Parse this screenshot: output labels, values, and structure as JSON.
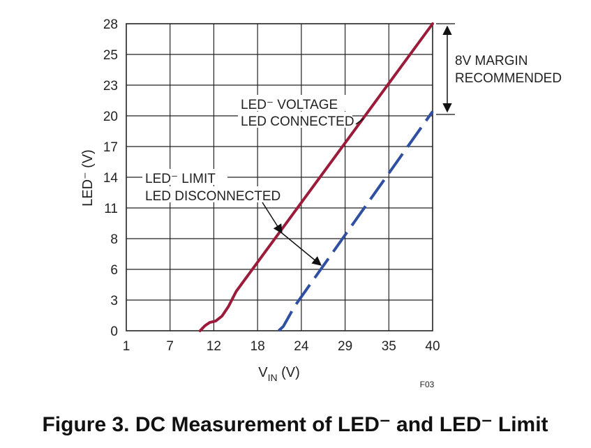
{
  "chart_data": {
    "type": "line",
    "x_ticks": [
      "1",
      "7",
      "12",
      "18",
      "24",
      "29",
      "35",
      "40"
    ],
    "y_ticks": [
      "0",
      "3",
      "6",
      "8",
      "11",
      "14",
      "17",
      "20",
      "23",
      "25",
      "28"
    ],
    "xlim": [
      1,
      40
    ],
    "ylim": [
      0,
      28
    ],
    "grid": true,
    "xlabel_main": "V",
    "xlabel_sub": "IN",
    "xlabel_unit": " (V)",
    "ylabel": "LED⁻ (V)",
    "series": [
      {
        "style": "solid",
        "color": "#9b1b3a",
        "x": [
          10.4,
          11.0,
          11.6,
          12.4,
          13.2,
          14.0,
          15.0,
          40.0
        ],
        "y": [
          0.0,
          0.45,
          0.75,
          0.9,
          1.35,
          2.2,
          3.6,
          28.0
        ]
      },
      {
        "style": "dashed",
        "color": "#2f4fa0",
        "x": [
          20.4,
          21.0,
          21.7,
          22.4,
          40.0
        ],
        "y": [
          0.0,
          0.4,
          1.3,
          2.2,
          20.0
        ]
      }
    ],
    "annotations": {
      "upper_line1": "LED⁻ VOLTAGE",
      "upper_line2": "LED CONNECTED",
      "lower_line1": "LED⁻ LIMIT",
      "lower_line2": "LED DISCONNECTED",
      "margin_line1": "8V MARGIN",
      "margin_line2": "RECOMMENDED"
    },
    "figure_id": "F03"
  },
  "caption": "Figure 3. DC Measurement of LED⁻ and LED⁻ Limit"
}
